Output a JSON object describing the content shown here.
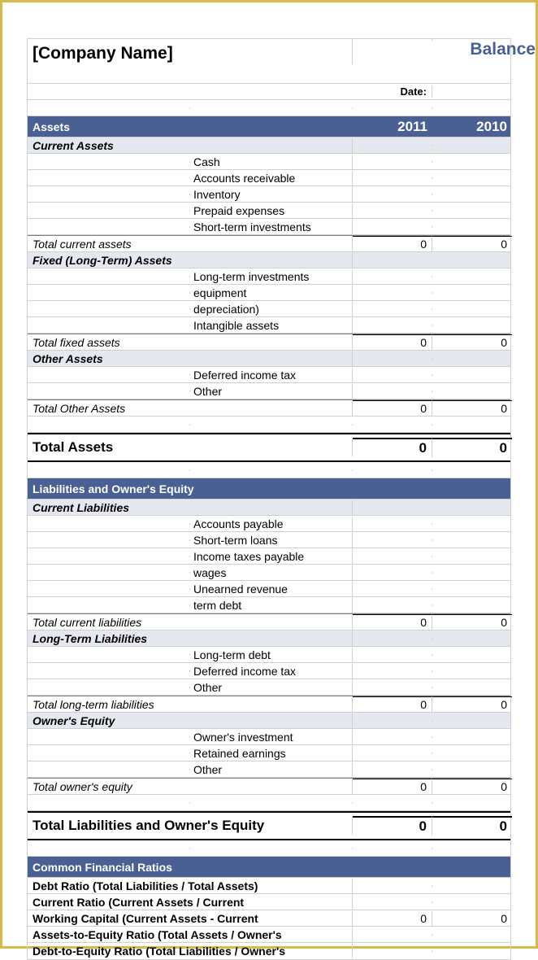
{
  "meta": {
    "company_name": "[Company Name]",
    "title": "Balance Sheet",
    "date_label": "Date:",
    "date_value": ""
  },
  "colors": {
    "border_outer": "#d8b94a",
    "section_bg": "#4a5f92",
    "section_fg": "#ffffff",
    "subheader_bg": "#e5e8ef",
    "title_color": "#4a5f92",
    "grid": "#d0d0d0"
  },
  "assets": {
    "heading": "Assets",
    "year1": "2011",
    "year2": "2010",
    "current": {
      "label": "Current Assets",
      "items": [
        "Cash",
        "Accounts receivable",
        "Inventory",
        "Prepaid expenses",
        "Short-term investments"
      ],
      "total_label": "Total current assets",
      "total_y1": "0",
      "total_y2": "0"
    },
    "fixed": {
      "label": "Fixed (Long-Term) Assets",
      "items": [
        "Long-term investments",
        "equipment",
        "depreciation)",
        "Intangible assets"
      ],
      "total_label": "Total fixed assets",
      "total_y1": "0",
      "total_y2": "0"
    },
    "other": {
      "label": "Other Assets",
      "items": [
        "Deferred income tax",
        "Other"
      ],
      "total_label": "Total Other Assets",
      "total_y1": "0",
      "total_y2": "0"
    },
    "grand_label": "Total Assets",
    "grand_y1": "0",
    "grand_y2": "0"
  },
  "liabilities": {
    "heading": "Liabilities and Owner's Equity",
    "current": {
      "label": "Current Liabilities",
      "items": [
        "Accounts payable",
        "Short-term loans",
        "Income taxes payable",
        "wages",
        "Unearned revenue",
        "term debt"
      ],
      "total_label": "Total current liabilities",
      "total_y1": "0",
      "total_y2": "0"
    },
    "longterm": {
      "label": "Long-Term Liabilities",
      "items": [
        "Long-term debt",
        "Deferred income tax",
        "Other"
      ],
      "total_label": "Total long-term liabilities",
      "total_y1": "0",
      "total_y2": "0"
    },
    "equity": {
      "label": "Owner's Equity",
      "items": [
        "Owner's investment",
        "Retained earnings",
        "Other"
      ],
      "total_label": "Total owner's equity",
      "total_y1": "0",
      "total_y2": "0"
    },
    "grand_label": "Total Liabilities and Owner's Equity",
    "grand_y1": "0",
    "grand_y2": "0"
  },
  "ratios": {
    "heading": "Common Financial Ratios",
    "rows": [
      {
        "label": "Debt Ratio (Total Liabilities / Total Assets)",
        "y1": "",
        "y2": ""
      },
      {
        "label": "Current Ratio (Current Assets / Current",
        "y1": "",
        "y2": ""
      },
      {
        "label": "Working Capital (Current Assets - Current",
        "y1": "0",
        "y2": "0"
      },
      {
        "label": "Assets-to-Equity Ratio (Total Assets / Owner's",
        "y1": "",
        "y2": ""
      },
      {
        "label": "Debt-to-Equity Ratio (Total Liabilities / Owner's",
        "y1": "",
        "y2": ""
      }
    ]
  }
}
